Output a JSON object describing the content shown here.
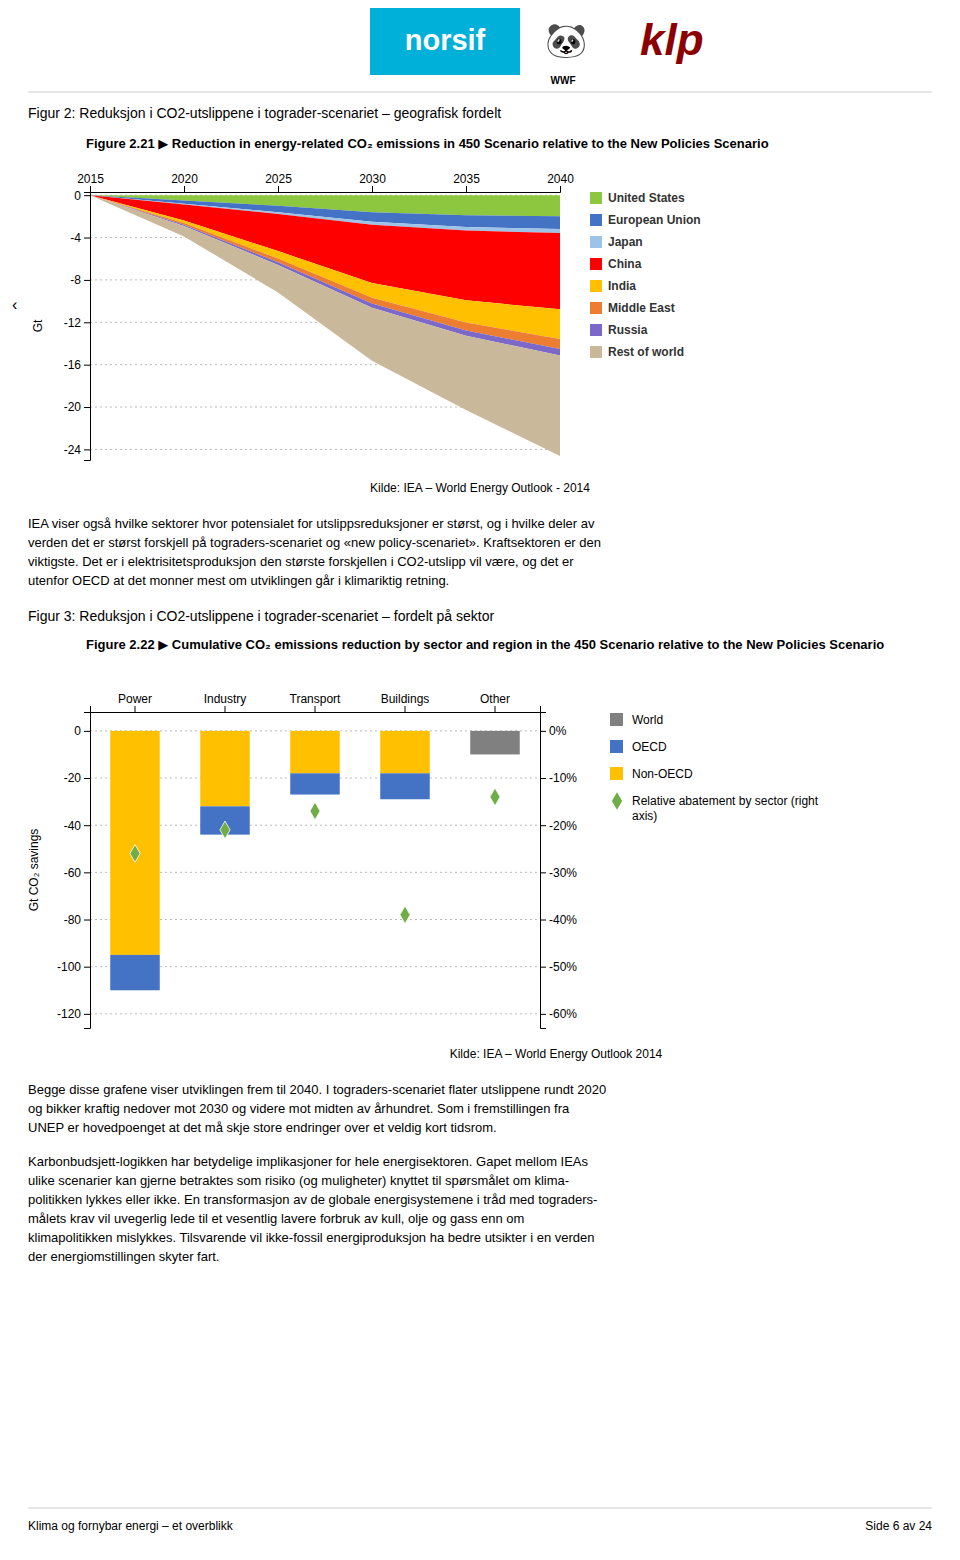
{
  "chart_data": [
    {
      "type": "area",
      "stacked": true,
      "title": "Figure 2.21 ▶ Reduction in energy-related CO₂ emissions in 450 Scenario relative to the New Policies Scenario",
      "x": [
        2015,
        2020,
        2025,
        2030,
        2035,
        2040
      ],
      "series": [
        {
          "name": "United States",
          "color": "#8dc63f",
          "values": [
            0,
            -0.5,
            -1.0,
            -1.6,
            -1.9,
            -2.0
          ]
        },
        {
          "name": "European Union",
          "color": "#4472c4",
          "values": [
            0,
            -0.3,
            -0.6,
            -0.9,
            -1.1,
            -1.2
          ]
        },
        {
          "name": "Japan",
          "color": "#9dc3e6",
          "values": [
            0,
            -0.08,
            -0.18,
            -0.28,
            -0.33,
            -0.38
          ]
        },
        {
          "name": "China",
          "color": "#ff0000",
          "values": [
            0,
            -1.5,
            -3.5,
            -5.5,
            -6.6,
            -7.2
          ]
        },
        {
          "name": "India",
          "color": "#ffc000",
          "values": [
            0,
            -0.25,
            -0.7,
            -1.4,
            -2.1,
            -2.8
          ]
        },
        {
          "name": "Middle East",
          "color": "#ed7d31",
          "values": [
            0,
            -0.15,
            -0.35,
            -0.55,
            -0.75,
            -0.95
          ]
        },
        {
          "name": "Russia",
          "color": "#7b68c8",
          "values": [
            0,
            -0.12,
            -0.25,
            -0.4,
            -0.5,
            -0.6
          ]
        },
        {
          "name": "Rest of world",
          "color": "#c9b89a",
          "values": [
            0,
            -1.0,
            -2.6,
            -5.0,
            -7.0,
            -9.5
          ]
        }
      ],
      "xlim": [
        2015,
        2040
      ],
      "xticks": [
        2015,
        2020,
        2025,
        2030,
        2035,
        2040
      ],
      "ylim": [
        -25,
        0.3
      ],
      "yticks": [
        0,
        -4,
        -8,
        -12,
        -16,
        -20,
        -24
      ],
      "ylabel": "Gt",
      "grid": true,
      "legend": "right",
      "annotations": [
        "Kilde: IEA – World Energy Outlook - 2014"
      ]
    },
    {
      "type": "bar",
      "stacked": true,
      "title": "Figure 2.22 ▶ Cumulative CO₂ emissions reduction by sector and region in the 450 Scenario relative to the New Policies Scenario",
      "categories": [
        "Power",
        "Industry",
        "Transport",
        "Buildings",
        "Other"
      ],
      "series": [
        {
          "name": "Non-OECD",
          "color": "#ffc000",
          "values": [
            -95,
            -32,
            -18,
            -18,
            0
          ]
        },
        {
          "name": "OECD",
          "color": "#4472c4",
          "values": [
            -15,
            -12,
            -9,
            -11,
            0
          ]
        },
        {
          "name": "World",
          "color": "#808080",
          "values": [
            0,
            0,
            0,
            0,
            -10
          ]
        },
        {
          "name": "Relative abatement by sector (right axis)",
          "type": "scatter",
          "marker": "diamond",
          "axis": "y2",
          "color": "#70ad47",
          "values": [
            -26,
            -21,
            -17,
            -39,
            -14
          ]
        }
      ],
      "ylim": [
        -126,
        8
      ],
      "yticks": [
        0,
        -20,
        -40,
        -60,
        -80,
        -100,
        -120
      ],
      "y2lim": [
        -63,
        4
      ],
      "y2ticks": [
        {
          "value": 0,
          "label": "0%"
        },
        {
          "value": -10,
          "label": "-10%"
        },
        {
          "value": -20,
          "label": "-20%"
        },
        {
          "value": -30,
          "label": "-30%"
        },
        {
          "value": -40,
          "label": "-40%"
        },
        {
          "value": -50,
          "label": "-50%"
        },
        {
          "value": -60,
          "label": "-60%"
        }
      ],
      "ylabel": "Gt CO₂ savings",
      "grid": true,
      "legend": "right",
      "annotations": [
        "Kilde: IEA – World Energy Outlook 2014"
      ]
    }
  ],
  "page": {
    "header": [
      {
        "text": "norsif",
        "background": "#00b0d8"
      },
      {
        "text": "🐼"
      },
      {
        "text": "WWF"
      },
      {
        "text": "klp",
        "color": "#8b0000"
      }
    ],
    "side_mark": "‹",
    "section_titles": [
      "Figur 2: Reduksjon i CO2-utslippene i tograder-scenariet – geografisk fordelt",
      "Figur 3: Reduksjon i CO2-utslippene i tograder-scenariet – fordelt på sektor"
    ],
    "para1": [
      "IEA viser også hvilke sektorer hvor potensialet for utslippsreduksjoner er størst, og i hvilke deler av",
      "verden det er størst forskjell på tograders-scenariet og «new policy-scenariet». Kraftsektoren er den",
      "viktigste. Det er i elektrisitetsproduksjon den største forskjellen i CO2-utslipp vil være, og det er",
      "utenfor OECD at det monner mest om utviklingen går i klimariktig retning."
    ],
    "para2": [
      "Begge disse grafene viser utviklingen frem til 2040. I tograders-scenariet flater utslippene rundt 2020",
      "og bikker kraftig nedover mot 2030 og videre mot midten av århundret. Som i fremstillingen fra",
      "UNEP er hovedpoenget at det må skje store endringer over et veldig kort tidsrom."
    ],
    "para3": [
      "Karbonbudsjett-logikken har betydelige implikasjoner for hele energisektoren. Gapet mellom IEAs",
      "ulike scenarier kan gjerne betraktes som risiko (og muligheter) knyttet til spørsmålet om klima-",
      "politikken lykkes eller ikke. En transformasjon av de globale energisystemene i tråd med tograders-",
      "målets krav vil uvegerlig lede til et vesentlig lavere forbruk av kull, olje og gass enn om",
      "klimapolitikken mislykkes. Tilsvarende vil ikke-fossil energiproduksjon ha bedre utsikter i en verden",
      "der energiomstillingen skyter fart."
    ],
    "footer_left": "Klima og fornybar energi – et overblikk",
    "footer_right": "Side 6 av 24"
  }
}
